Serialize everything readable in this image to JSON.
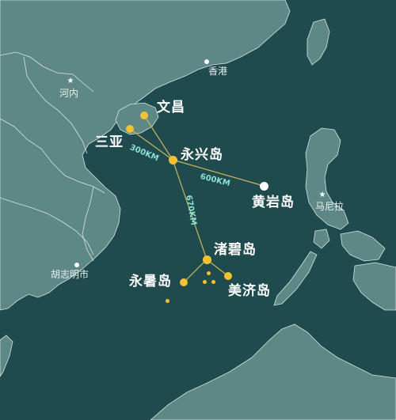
{
  "map": {
    "colors": {
      "sea": "#1f4a4e",
      "land": "#5e8885",
      "border": "#d7e4e2",
      "route": "#c9b65a",
      "island_dot": "#f3c233",
      "white_dot": "#ffffff",
      "distance_text": "#8ce0d2"
    },
    "places": {
      "wenchang": "文昌",
      "sanya": "三亚",
      "yongxing": "永兴岛",
      "huangyan": "黄岩岛",
      "zhubi": "渚碧岛",
      "yongshu": "永暑岛",
      "meiji": "美济岛",
      "hongkong": "香港",
      "hanoi": "河内",
      "hcmc": "胡志明市",
      "manila": "马尼拉"
    },
    "distances": {
      "sanya_yongxing": "300KM",
      "yongxing_huangyan": "600KM",
      "yongxing_zhubi": "670KM"
    },
    "icons": {
      "capital": "star-icon",
      "city": "city-dot-icon",
      "island": "island-dot-icon"
    }
  }
}
